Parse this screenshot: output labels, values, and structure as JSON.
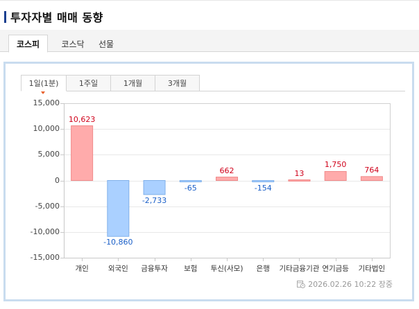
{
  "title": "투자자별 매매 동향",
  "market_tabs": [
    {
      "label": "코스피",
      "active": true
    },
    {
      "label": "코스닥",
      "active": false
    },
    {
      "label": "선물",
      "active": false
    }
  ],
  "period_tabs": [
    {
      "label": "1일(1분)",
      "active": true
    },
    {
      "label": "1주일",
      "active": false
    },
    {
      "label": "1개월",
      "active": false
    },
    {
      "label": "3개월",
      "active": false
    }
  ],
  "footer": {
    "icon": "clock-calendar-icon",
    "timestamp": "2026.02.26 10:22 장중"
  },
  "colors": {
    "positive_fill": "#ffabab",
    "positive_stroke": "#f08a8a",
    "positive_text": "#d0021b",
    "negative_fill": "#aad0ff",
    "negative_stroke": "#7fb0ea",
    "negative_text": "#1a5fc8",
    "accent": "#1a3f8f",
    "panel_border": "#c9dcef"
  },
  "chart_data": {
    "type": "bar",
    "title": "투자자별 매매 동향",
    "categories": [
      "개인",
      "외국인",
      "금융투자",
      "보험",
      "투신(사모)",
      "은행",
      "기타금융기관",
      "연기금등",
      "기타법인"
    ],
    "values": [
      10623,
      -10860,
      -2733,
      -65,
      662,
      -154,
      13,
      1750,
      764
    ],
    "value_labels": [
      "10,623",
      "-10,860",
      "-2,733",
      "-65",
      "662",
      "-154",
      "13",
      "1,750",
      "764"
    ],
    "xlabel": "",
    "ylabel": "",
    "ylim": [
      -15000,
      15000
    ],
    "yticks": [
      15000,
      10000,
      5000,
      0,
      -5000,
      -10000,
      -15000
    ],
    "ytick_labels": [
      "15,000",
      "10,000",
      "5,000",
      "0",
      "-5,000",
      "-10,000",
      "-15,000"
    ],
    "grid": true,
    "legend": null
  }
}
